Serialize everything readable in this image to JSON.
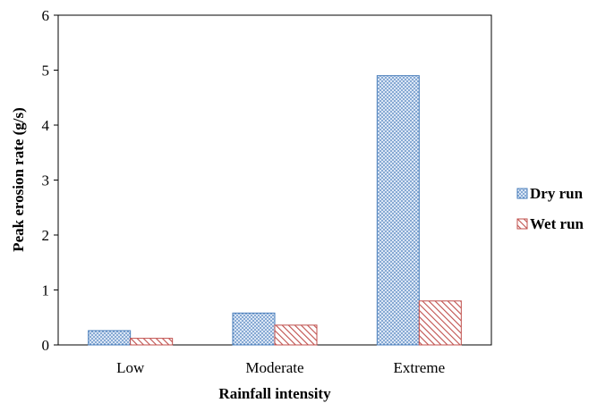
{
  "chart_data": {
    "type": "bar",
    "title": "",
    "xlabel": "Rainfall intensity",
    "ylabel": "Peak erosion rate (g/s)",
    "categories": [
      "Low",
      "Moderate",
      "Extreme"
    ],
    "ylim": [
      0,
      6
    ],
    "yticks": [
      0,
      1,
      2,
      3,
      4,
      5,
      6
    ],
    "grid": false,
    "legend": "right",
    "series": [
      {
        "name": "Dry run",
        "values": [
          0.26,
          0.58,
          4.9
        ],
        "color": "#4a7ebb",
        "pattern": "dots"
      },
      {
        "name": "Wet run",
        "values": [
          0.12,
          0.36,
          0.8
        ],
        "color": "#c0504d",
        "pattern": "diagonal-stripes"
      }
    ]
  }
}
